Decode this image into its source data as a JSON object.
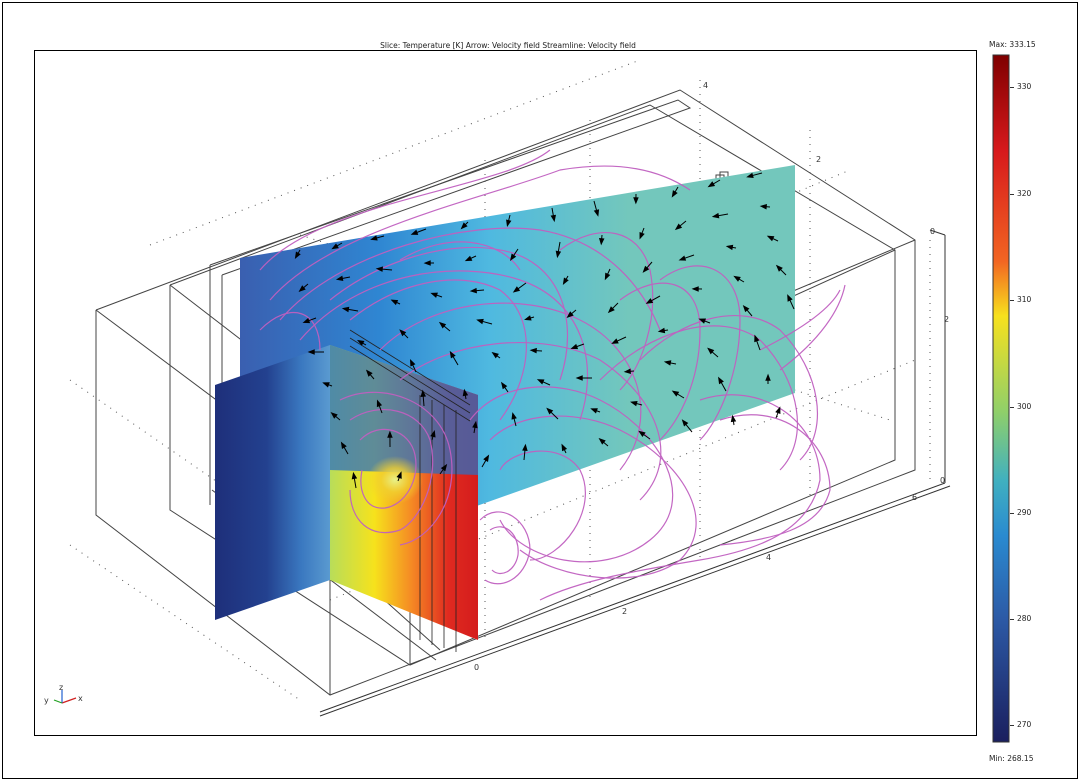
{
  "plot": {
    "title": "Slice: Temperature [K]    Arrow: Velocity field    Streamline: Velocity field",
    "axis_triad": {
      "y": "y",
      "z": "z",
      "x": "x"
    },
    "x_axis_ticks": [
      "0",
      "2",
      "4",
      "6"
    ],
    "y_axis_ticks": [
      "2",
      "4"
    ],
    "z_axis_ticks": [
      "0",
      "2",
      "0"
    ]
  },
  "colorbar": {
    "max_label": "Max: 333.15",
    "min_label": "Min: 268.15",
    "ticks": [
      "330",
      "320",
      "310",
      "300",
      "290",
      "280",
      "270"
    ],
    "colors": [
      "#7f0000",
      "#d7191c",
      "#f26522",
      "#f7e11d",
      "#8fcf6a",
      "#40b0c0",
      "#2a8ad0",
      "#2c5aa6",
      "#1b1f5e"
    ]
  },
  "colors": {
    "streamline": "#c060c0",
    "arrow": "#000000",
    "cold": "#1f3d8a",
    "hot": "#d0201c",
    "slice_teal": "#73c7bc"
  }
}
